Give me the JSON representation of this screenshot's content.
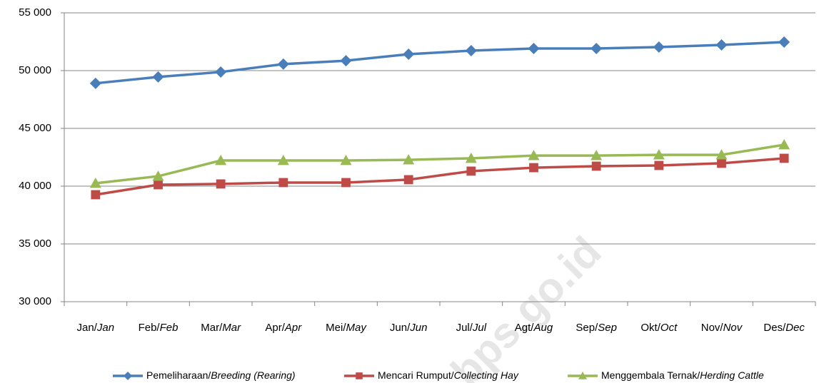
{
  "chart_data": {
    "type": "line",
    "watermark": "bps.go.id",
    "categories": [
      "Jan/Jan",
      "Feb/Feb",
      "Mar/Mar",
      "Apr/Apr",
      "Mei/May",
      "Jun/Jun",
      "Jul/Jul",
      "Agt/Aug",
      "Sep/Sep",
      "Okt/Oct",
      "Nov/Nov",
      "Des/Dec"
    ],
    "series": [
      {
        "name": "Pemeliharaan/Breeding (Rearing)",
        "color": "#4a7ebb",
        "marker": "diamond",
        "values": [
          48900,
          49450,
          49880,
          50560,
          50860,
          51420,
          51730,
          51910,
          51910,
          52040,
          52220,
          52470
        ]
      },
      {
        "name": "Mencari Rumput/Collecting Hay",
        "color": "#be4b48",
        "marker": "square",
        "values": [
          39260,
          40120,
          40190,
          40310,
          40310,
          40560,
          41300,
          41600,
          41730,
          41790,
          41980,
          42410
        ]
      },
      {
        "name": "Menggembala Ternak/Herding Cattle",
        "color": "#98b954",
        "marker": "triangle",
        "values": [
          40250,
          40860,
          42220,
          42220,
          42220,
          42280,
          42410,
          42650,
          42650,
          42710,
          42710,
          43580
        ]
      }
    ],
    "ylim": [
      30000,
      55000
    ],
    "yticks": [
      {
        "value": 30000,
        "label": "30 000"
      },
      {
        "value": 35000,
        "label": "35 000"
      },
      {
        "value": 40000,
        "label": "40 000"
      },
      {
        "value": 45000,
        "label": "45 000"
      },
      {
        "value": 50000,
        "label": "50 000"
      },
      {
        "value": 55000,
        "label": "55 000"
      }
    ],
    "grid": true,
    "legend": "bottom"
  }
}
